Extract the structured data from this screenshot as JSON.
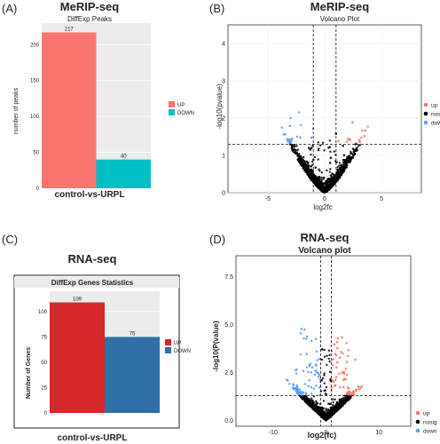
{
  "panels": {
    "a": {
      "label": "(A)"
    },
    "b": {
      "label": "(B)"
    },
    "c": {
      "label": "(C)"
    },
    "d": {
      "label": "(D)"
    }
  },
  "chart_data": [
    {
      "type": "bar",
      "title": "MeRIP-seq",
      "subtitle": "DiffExp Peaks",
      "xlabel": "control-vs-URPL",
      "ylabel": "number of peaks",
      "ylim": [
        0,
        230
      ],
      "yticks": [
        0,
        50,
        100,
        150,
        200
      ],
      "categories": [
        "UP",
        "DOWN"
      ],
      "values": [
        217,
        40
      ],
      "value_labels": [
        "217",
        "40"
      ],
      "colors": {
        "UP": "#f8766d",
        "DOWN": "#00bfc4"
      },
      "legend": [
        "UP",
        "DOWN"
      ],
      "legend_position": "right",
      "grid": true
    },
    {
      "type": "scatter",
      "title": "MeRIP-seq",
      "subtitle": "Volcano Plot",
      "xlabel": "log2fc",
      "ylabel": "-log10(pvalue)",
      "xlim": [
        -8.5,
        8.5
      ],
      "ylim": [
        0,
        4.5
      ],
      "xticks": [
        -5,
        0,
        5
      ],
      "yticks": [
        0,
        1,
        2,
        3,
        4
      ],
      "thresholds": {
        "x": [
          -1,
          1
        ],
        "y": 1.3
      },
      "legend": [
        "up",
        "nosig",
        "down"
      ],
      "legend_position": "right",
      "colors": {
        "up": "#f8766d",
        "nosig": "#000000",
        "down": "#619cff"
      },
      "grid": true
    },
    {
      "type": "bar",
      "title": "RNA-seq",
      "subtitle": "DiffExp Genes Statistics",
      "xlabel": "control-vs-URPL",
      "ylabel": "Number of Genes",
      "ylim": [
        0,
        120
      ],
      "yticks": [
        0,
        25,
        50,
        75,
        100
      ],
      "categories": [
        "UP",
        "DOWN"
      ],
      "values": [
        109,
        75
      ],
      "value_labels": [
        "109",
        "75"
      ],
      "colors": {
        "UP": "#d62728",
        "DOWN": "#2e6fa8"
      },
      "legend": [
        "UP",
        "DOWN"
      ],
      "legend_position": "right",
      "grid": true
    },
    {
      "type": "scatter",
      "title": "RNA-seq",
      "subtitle": "Volcano plot",
      "xlabel": "log2(fc)",
      "ylabel": "-log10(P(value)",
      "xlim": [
        -17,
        16
      ],
      "ylim": [
        -0.3,
        8.6
      ],
      "xticks": [
        -10,
        0,
        10
      ],
      "yticks": [
        0.0,
        2.5,
        5.0,
        7.5
      ],
      "tick_labels_y": [
        "0.0",
        "2.5",
        "5.0",
        "7.5"
      ],
      "thresholds": {
        "x": [
          -1,
          1
        ],
        "y": 1.3
      },
      "legend": [
        "up",
        "nosig",
        "down"
      ],
      "legend_position": "right",
      "colors": {
        "up": "#f8766d",
        "nosig": "#000000",
        "down": "#619cff"
      },
      "grid": false
    }
  ]
}
